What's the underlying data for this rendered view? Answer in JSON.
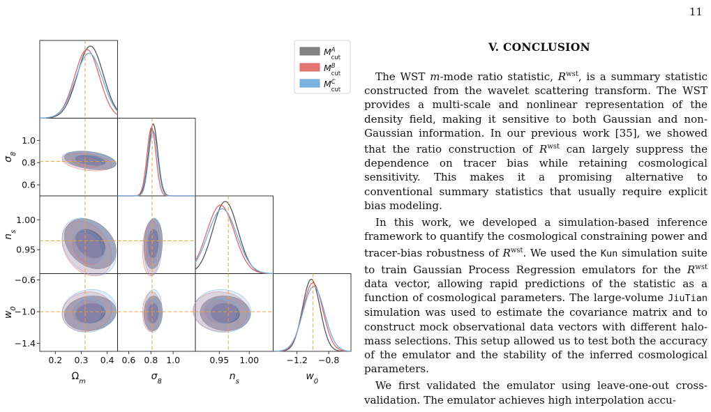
{
  "page_number": "11",
  "section": {
    "title": "V.   CONCLUSION"
  },
  "paragraphs": {
    "p1": {
      "a": "The WST ",
      "m": "m",
      "b": "-mode ratio statistic, ",
      "R": "R",
      "sup": "wst",
      "c": ", is a summary statistic constructed from the wavelet scattering transform. The WST provides a multi-scale and nonlinear representation of the density field, making it sensitive to both Gaussian and non-Gaussian information. In our previous work [35], we showed that the ratio construction of ",
      "R2": "R",
      "sup2": "wst",
      "d": " can largely suppress the dependence on tracer bias while retaining cosmological sensitivity. This makes it a promising alternative to conventional summary statistics that usually require explicit bias modeling."
    },
    "p2": {
      "a": "In this work, we developed a simulation-based inference framework to quantify the cosmological constraining power and tracer-bias robustness of ",
      "R": "R",
      "sup": "wst",
      "b": ". We used the ",
      "kun": "Kun",
      "c": " simulation suite to train Gaussian Process Regression emulators for the ",
      "R2": "R",
      "sup2": "wst",
      "d": " data vector, allowing rapid predictions of the statistic as a function of cosmological parameters. The large-volume ",
      "jiutian": "JiuTian",
      "e": " simulation was used to estimate the covariance matrix and to construct mock observational data vectors with different halo-mass selections. This setup allowed us to test both the accuracy of the emulator and the stability of the inferred cosmological parameters."
    },
    "p3": {
      "a": "We first validated the emulator using leave-one-out cross-validation. The emulator achieves high interpolation accu-"
    }
  },
  "chart_data": {
    "type": "corner",
    "parameters": [
      {
        "name": "Ω_m",
        "label": "Ω",
        "label_sub": "m",
        "ticks": [
          "0.2",
          "0.3",
          "0.4"
        ],
        "fiducial": 0.315,
        "range": [
          0.14,
          0.44
        ]
      },
      {
        "name": "σ_8",
        "label": "σ",
        "label_sub": "8",
        "ticks": [
          "0.6",
          "0.8",
          "1.0"
        ],
        "fiducial": 0.811,
        "range": [
          0.5,
          1.2
        ]
      },
      {
        "name": "n_s",
        "label": "n",
        "label_sub": "s",
        "ticks": [
          "0.95",
          "1.00"
        ],
        "fiducial": 0.965,
        "range": [
          0.91,
          1.04
        ]
      },
      {
        "name": "w_0",
        "label": "w",
        "label_sub": "0",
        "ticks": [
          "−1.2",
          "−0.8"
        ],
        "fiducial": -1.0,
        "range": [
          -1.5,
          -0.52
        ]
      }
    ],
    "y_ticks": {
      "σ_8": [
        "0.6",
        "0.8",
        "1.0"
      ],
      "n_s": [
        "0.95",
        "1.00"
      ],
      "w_0": [
        "−1.4",
        "−1.0",
        "−0.6"
      ]
    },
    "series": [
      {
        "name": "M_cut^A",
        "label_main": "M",
        "label_sup": "A",
        "label_sub": "cut",
        "color": "#777777",
        "mean": [
          0.335,
          0.82,
          0.96,
          -1.02
        ],
        "sigma": [
          0.05,
          0.042,
          0.021,
          0.11
        ]
      },
      {
        "name": "M_cut^B",
        "label_main": "M",
        "label_sup": "B",
        "label_sub": "cut",
        "color": "#e06666",
        "mean": [
          0.322,
          0.805,
          0.952,
          -1.0
        ],
        "sigma": [
          0.048,
          0.04,
          0.023,
          0.125
        ]
      },
      {
        "name": "M_cut^C",
        "label_main": "M",
        "label_sup": "C",
        "label_sub": "cut",
        "color": "#6fa8dc",
        "mean": [
          0.33,
          0.82,
          0.955,
          -0.99
        ],
        "sigma": [
          0.052,
          0.04,
          0.024,
          0.135
        ]
      }
    ],
    "fiducial_line_color": "#f0a030",
    "legend_position": "top-right"
  }
}
